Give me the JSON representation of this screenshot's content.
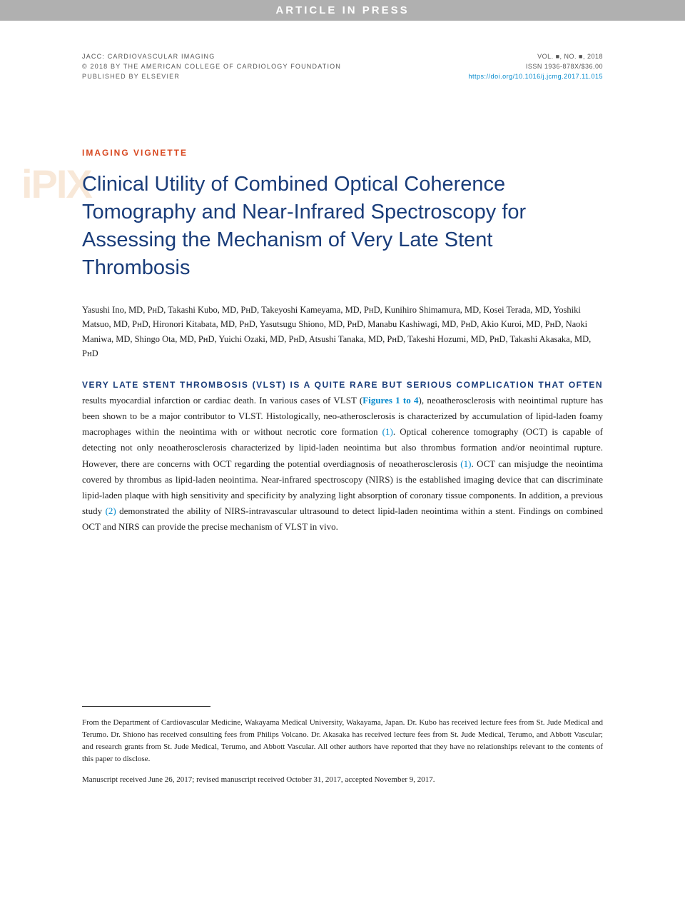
{
  "banner": "ARTICLE IN PRESS",
  "header": {
    "journal": "JACC: CARDIOVASCULAR IMAGING",
    "copyright": "© 2018 BY THE AMERICAN COLLEGE OF CARDIOLOGY FOUNDATION",
    "publisher": "PUBLISHED BY ELSEVIER",
    "volume": "VOL. ■, NO. ■, 2018",
    "issn": "ISSN 1936-878X/$36.00",
    "doi": "https://doi.org/10.1016/j.jcmg.2017.11.015"
  },
  "watermark": "iPIX",
  "section_label": "IMAGING VIGNETTE",
  "title": "Clinical Utility of Combined Optical Coherence Tomography and Near-Infrared Spectroscopy for Assessing the Mechanism of Very Late Stent Thrombosis",
  "authors": "Yasushi Ino, MD, PʜD, Takashi Kubo, MD, PʜD, Takeyoshi Kameyama, MD, PʜD, Kunihiro Shimamura, MD, Kosei Terada, MD, Yoshiki Matsuo, MD, PʜD, Hironori Kitabata, MD, PʜD, Yasutsugu Shiono, MD, PʜD, Manabu Kashiwagi, MD, PʜD, Akio Kuroi, MD, PʜD, Naoki Maniwa, MD, Shingo Ota, MD, PʜD, Yuichi Ozaki, MD, PʜD, Atsushi Tanaka, MD, PʜD, Takeshi Hozumi, MD, PʜD, Takashi Akasaka, MD, PʜD",
  "body": {
    "lead": "VERY LATE STENT THROMBOSIS (VLST) IS A QUITE RARE BUT SERIOUS COMPLICATION THAT OFTEN",
    "p1a": "results myocardial infarction or cardiac death. In various cases of VLST (",
    "fig_ref": "Figures 1 to 4",
    "p1b": "), neoatherosclerosis with neointimal rupture has been shown to be a major contributor to VLST. Histologically, neo-atherosclerosis is characterized by accumulation of lipid-laden foamy macrophages within the neointima with or without necrotic core formation ",
    "ref1a": "(1)",
    "p1c": ". Optical coherence tomography (OCT) is capable of detecting not only neoatherosclerosis characterized by lipid-laden neointima but also thrombus formation and/or neointimal rupture. However, there are concerns with OCT regarding the potential overdiagnosis of neoatherosclerosis ",
    "ref1b": "(1)",
    "p1d": ". OCT can misjudge the neointima covered by thrombus as lipid-laden neointima. Near-infrared spectroscopy (NIRS) is the established imaging device that can discriminate lipid-laden plaque with high sensitivity and specificity by analyzing light absorption of coronary tissue components. In addition, a previous study ",
    "ref2": "(2)",
    "p1e": " demonstrated the ability of NIRS-intravascular ultrasound to detect lipid-laden neointima within a stent. Findings on combined OCT and NIRS can provide the precise mechanism of VLST in vivo."
  },
  "footnote": {
    "affiliation": "From the Department of Cardiovascular Medicine, Wakayama Medical University, Wakayama, Japan. Dr. Kubo has received lecture fees from St. Jude Medical and Terumo. Dr. Shiono has received consulting fees from Philips Volcano. Dr. Akasaka has received lecture fees from St. Jude Medical, Terumo, and Abbott Vascular; and research grants from St. Jude Medical, Terumo, and Abbott Vascular. All other authors have reported that they have no relationships relevant to the contents of this paper to disclose.",
    "dates": "Manuscript received June 26, 2017; revised manuscript received October 31, 2017, accepted November 9, 2017."
  },
  "colors": {
    "banner_bg": "#b0b0b0",
    "title_color": "#1a3d7a",
    "section_color": "#d84820",
    "link_color": "#0088cc",
    "watermark_color": "#f8e8d8"
  }
}
